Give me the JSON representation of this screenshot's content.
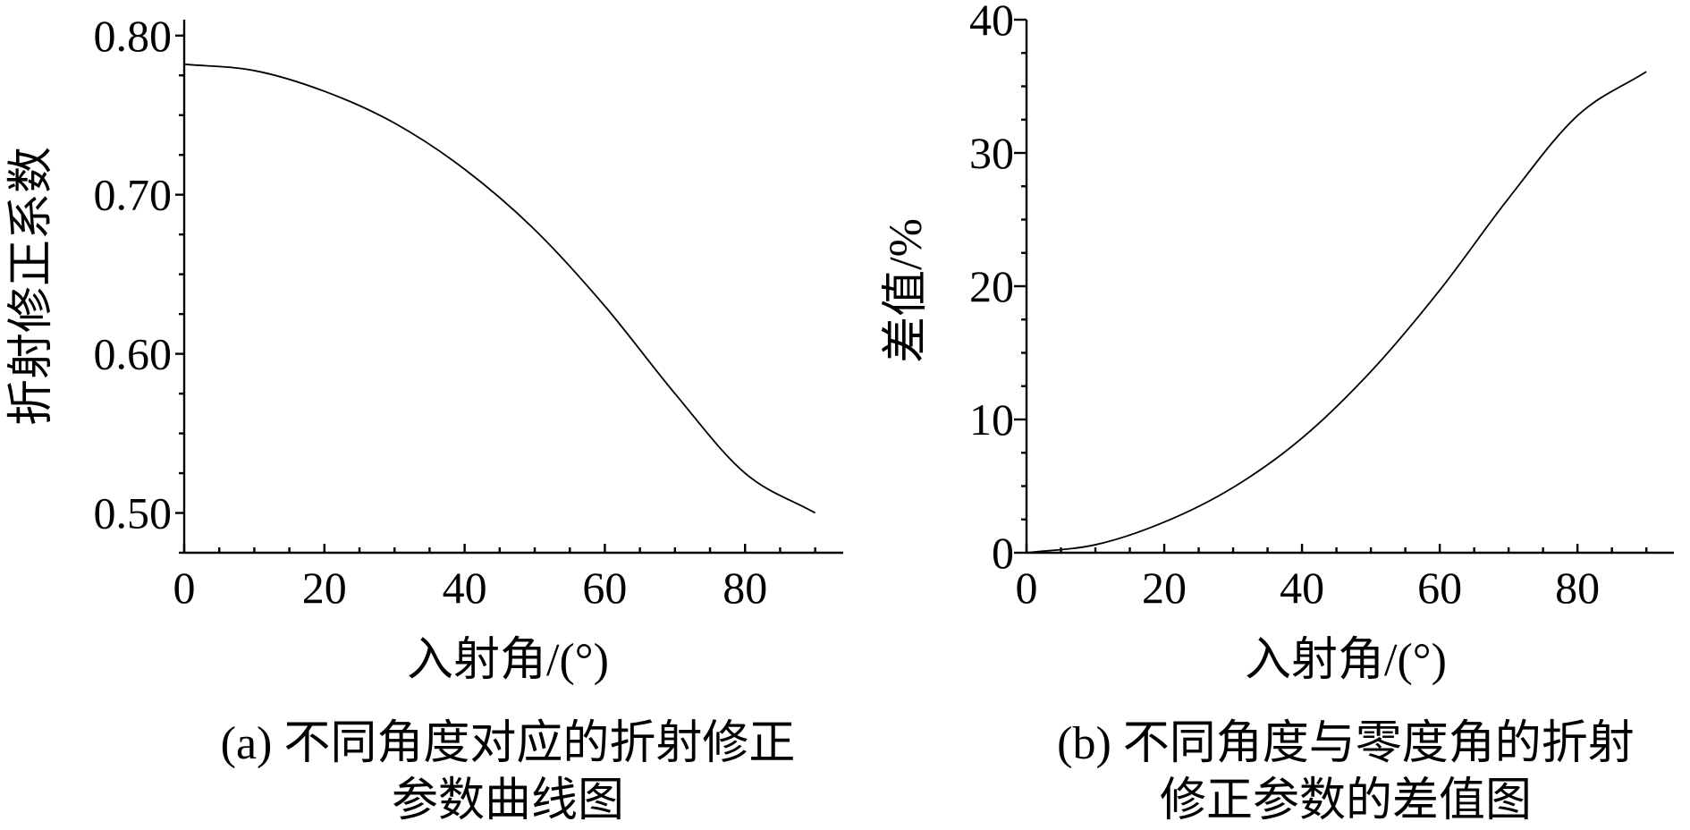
{
  "chart_data": [
    {
      "type": "line",
      "caption_lines": [
        "(a) 不同角度对应的折射修正",
        "参数曲线图"
      ],
      "xlabel": "入射角/(°)",
      "ylabel": "折射修正系数",
      "xlim": [
        0,
        94
      ],
      "ylim": [
        0.475,
        0.81
      ],
      "xticks": [
        0,
        20,
        40,
        60,
        80
      ],
      "xtick_labels": [
        "0",
        "20",
        "40",
        "60",
        "80"
      ],
      "yticks": [
        0.5,
        0.6,
        0.7,
        0.8
      ],
      "ytick_labels": [
        "0.50",
        "0.60",
        "0.70",
        "0.80"
      ],
      "grid": false,
      "series": [
        {
          "x": [
            0,
            10,
            20,
            30,
            40,
            50,
            60,
            70,
            80,
            90
          ],
          "y": [
            0.782,
            0.778,
            0.765,
            0.745,
            0.716,
            0.678,
            0.63,
            0.575,
            0.525,
            0.5
          ]
        }
      ]
    },
    {
      "type": "line",
      "caption_lines": [
        "(b) 不同角度与零度角的折射",
        "修正参数的差值图"
      ],
      "xlabel": "入射角/(°)",
      "ylabel": "差值/%",
      "xlim": [
        0,
        94
      ],
      "ylim": [
        0,
        40
      ],
      "xticks": [
        0,
        20,
        40,
        60,
        80
      ],
      "xtick_labels": [
        "0",
        "20",
        "40",
        "60",
        "80"
      ],
      "yticks": [
        0,
        10,
        20,
        30,
        40
      ],
      "ytick_labels": [
        "0",
        "10",
        "20",
        "30",
        "40"
      ],
      "grid": false,
      "series": [
        {
          "x": [
            0,
            10,
            20,
            30,
            40,
            50,
            60,
            70,
            80,
            90
          ],
          "y": [
            0,
            0.6,
            2.3,
            4.9,
            8.6,
            13.6,
            19.7,
            26.6,
            32.8,
            36.1
          ]
        }
      ]
    }
  ]
}
